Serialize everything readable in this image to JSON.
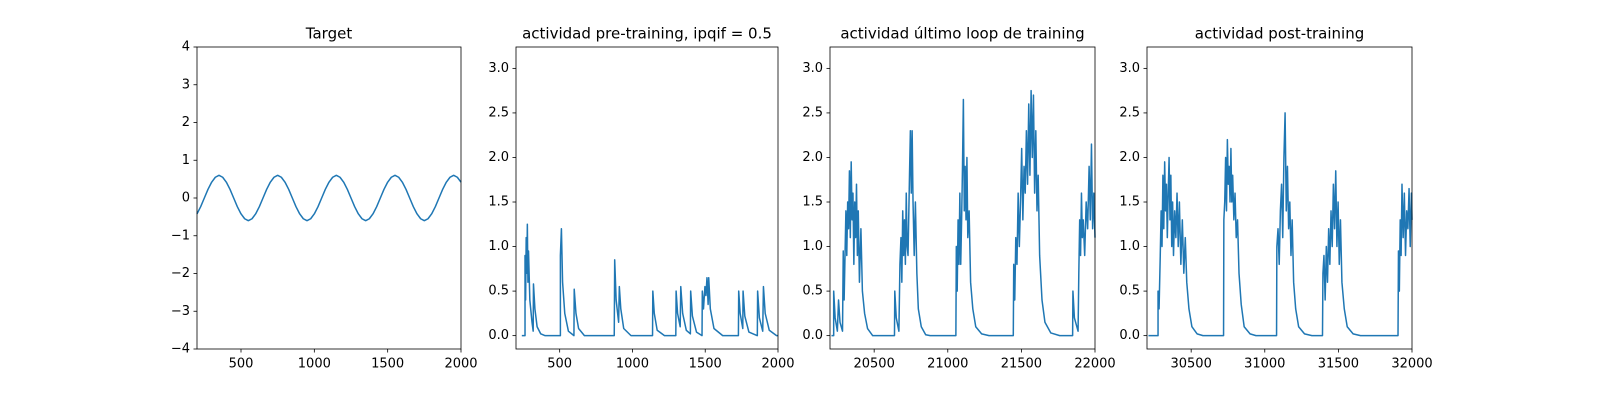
{
  "chart_data": [
    {
      "type": "line",
      "title": "Target",
      "color": "#1f77b4",
      "x": [
        200,
        225,
        250,
        275,
        300,
        325,
        350,
        375,
        400,
        425,
        450,
        475,
        500,
        525,
        550,
        575,
        600,
        625,
        650,
        675,
        700,
        725,
        750,
        775,
        800,
        825,
        850,
        875,
        900,
        925,
        950,
        975,
        1000,
        1025,
        1050,
        1075,
        1100,
        1125,
        1150,
        1175,
        1200,
        1225,
        1250,
        1275,
        1300,
        1325,
        1350,
        1375,
        1400,
        1425,
        1450,
        1475,
        1500,
        1525,
        1550,
        1575,
        1600,
        1625,
        1650,
        1675,
        1700,
        1725,
        1750,
        1775,
        1800,
        1825,
        1850,
        1875,
        1900,
        1925,
        1950,
        1975,
        2000
      ],
      "values": [
        -0.42,
        -0.23,
        0,
        0.23,
        0.42,
        0.55,
        0.6,
        0.55,
        0.42,
        0.23,
        0,
        -0.23,
        -0.42,
        -0.55,
        -0.6,
        -0.55,
        -0.42,
        -0.23,
        0,
        0.23,
        0.42,
        0.55,
        0.6,
        0.55,
        0.42,
        0.23,
        0,
        -0.23,
        -0.42,
        -0.55,
        -0.6,
        -0.55,
        -0.42,
        -0.23,
        0,
        0.23,
        0.42,
        0.55,
        0.6,
        0.55,
        0.42,
        0.23,
        0,
        -0.23,
        -0.42,
        -0.55,
        -0.6,
        -0.55,
        -0.42,
        -0.23,
        0,
        0.23,
        0.42,
        0.55,
        0.6,
        0.55,
        0.42,
        0.23,
        0,
        -0.23,
        -0.42,
        -0.55,
        -0.6,
        -0.55,
        -0.42,
        -0.23,
        0,
        0.23,
        0.42,
        0.55,
        0.6,
        0.55,
        0.42
      ],
      "xlim": [
        200,
        2000
      ],
      "ylim": [
        -4,
        4
      ],
      "xticks": [
        500,
        1000,
        1500,
        2000
      ],
      "yticks": [
        {
          "value": -4,
          "label": "−4"
        },
        {
          "value": -3,
          "label": "−3"
        },
        {
          "value": -2,
          "label": "−2"
        },
        {
          "value": -1,
          "label": "−1"
        },
        0,
        1,
        2,
        3,
        4
      ]
    },
    {
      "type": "line",
      "title": "actividad pre-training, ipqif = 0.5",
      "color": "#1f77b4",
      "x": [
        240,
        262,
        262,
        266,
        270,
        274,
        278,
        282,
        286,
        295,
        310,
        318,
        320,
        330,
        345,
        370,
        400,
        505,
        505,
        512,
        520,
        535,
        560,
        598,
        600,
        612,
        630,
        670,
        875,
        878,
        888,
        905,
        910,
        920,
        940,
        990,
        1138,
        1140,
        1150,
        1170,
        1220,
        1298,
        1300,
        1310,
        1328,
        1332,
        1345,
        1370,
        1398,
        1400,
        1412,
        1440,
        1478,
        1480,
        1488,
        1498,
        1505,
        1512,
        1520,
        1524,
        1535,
        1560,
        1620,
        1728,
        1730,
        1740,
        1758,
        1760,
        1772,
        1800,
        1858,
        1860,
        1872,
        1895,
        1900,
        1912,
        1940,
        1990,
        2000
      ],
      "values": [
        0,
        0,
        0.9,
        0.4,
        1.1,
        0.7,
        1.25,
        0.6,
        0.95,
        0.4,
        0.15,
        0.05,
        0.58,
        0.3,
        0.1,
        0.02,
        0,
        0,
        0.9,
        1.2,
        0.6,
        0.25,
        0.05,
        0,
        0.52,
        0.25,
        0.08,
        0,
        0,
        0.85,
        0.4,
        0.15,
        0.55,
        0.3,
        0.08,
        0,
        0,
        0.5,
        0.25,
        0.06,
        0,
        0,
        0.5,
        0.25,
        0.1,
        0.55,
        0.25,
        0.06,
        0.02,
        0.5,
        0.22,
        0.04,
        0,
        0.5,
        0.3,
        0.55,
        0.45,
        0.65,
        0.35,
        0.65,
        0.3,
        0.08,
        0,
        0,
        0.5,
        0.25,
        0.08,
        0.5,
        0.22,
        0.04,
        0,
        0.5,
        0.2,
        0.05,
        0.55,
        0.25,
        0.06,
        0,
        0
      ],
      "xlim": [
        200,
        2000
      ],
      "ylim": [
        -0.15,
        3.24
      ],
      "xticks": [
        500,
        1000,
        1500,
        2000
      ],
      "yticks": [
        {
          "value": 0,
          "label": "0.0"
        },
        0.5,
        {
          "value": 1,
          "label": "1.0"
        },
        1.5,
        {
          "value": 2,
          "label": "2.0"
        },
        2.5,
        {
          "value": 3,
          "label": "3.0"
        }
      ]
    },
    {
      "type": "line",
      "title": "actividad último loop de training",
      "color": "#1f77b4",
      "x": [
        20210,
        20225,
        20225,
        20235,
        20250,
        20258,
        20268,
        20285,
        20290,
        20296,
        20302,
        20308,
        20314,
        20320,
        20326,
        20332,
        20338,
        20344,
        20350,
        20356,
        20362,
        20368,
        20374,
        20380,
        20386,
        20392,
        20400,
        20410,
        20420,
        20435,
        20455,
        20490,
        20638,
        20640,
        20650,
        20668,
        20675,
        20682,
        20688,
        20694,
        20700,
        20706,
        20712,
        20718,
        20724,
        20730,
        20740,
        20746,
        20752,
        20758,
        20764,
        20772,
        20780,
        20790,
        20800,
        20820,
        20850,
        20880,
        21055,
        21058,
        21064,
        21070,
        21076,
        21082,
        21088,
        21094,
        21100,
        21106,
        21112,
        21118,
        21124,
        21130,
        21136,
        21145,
        21155,
        21170,
        21190,
        21230,
        21280,
        21445,
        21448,
        21455,
        21462,
        21470,
        21478,
        21486,
        21494,
        21502,
        21510,
        21518,
        21526,
        21534,
        21542,
        21550,
        21558,
        21566,
        21574,
        21582,
        21590,
        21598,
        21606,
        21614,
        21624,
        21640,
        21660,
        21700,
        21760,
        21848,
        21850,
        21860,
        21885,
        21890,
        21896,
        21902,
        21908,
        21914,
        21920,
        21930,
        21940,
        21950,
        21960,
        21968,
        21976,
        21984,
        21992,
        22000
      ],
      "values": [
        0,
        0,
        0.5,
        0.2,
        0.05,
        0.4,
        0.15,
        0.05,
        0.95,
        0.4,
        0.9,
        1.4,
        0.9,
        1.5,
        1.2,
        1.85,
        1.1,
        1.95,
        1.3,
        1.6,
        0.8,
        1.5,
        1.1,
        1.7,
        0.9,
        1.4,
        0.6,
        1.2,
        0.5,
        0.25,
        0.08,
        0,
        0,
        0.5,
        0.2,
        0.05,
        0.8,
        1.1,
        0.6,
        1.4,
        0.9,
        1.3,
        0.8,
        1.6,
        1.0,
        0.9,
        1.8,
        2.3,
        1.6,
        2.3,
        1.5,
        0.9,
        1.5,
        0.7,
        0.3,
        0.1,
        0.01,
        0,
        0,
        1.0,
        0.5,
        1.3,
        0.8,
        1.6,
        0.8,
        1.3,
        1.9,
        2.65,
        1.4,
        1.9,
        1.3,
        2.0,
        1.1,
        1.4,
        0.6,
        0.3,
        0.1,
        0.02,
        0,
        0,
        0.8,
        0.4,
        1.1,
        0.8,
        1.6,
        1.0,
        1.5,
        2.1,
        1.3,
        1.9,
        1.6,
        2.3,
        1.7,
        2.6,
        1.8,
        2.75,
        2.0,
        2.7,
        1.6,
        2.3,
        1.4,
        1.8,
        0.9,
        0.4,
        0.15,
        0.03,
        0,
        0,
        0.5,
        0.2,
        0.05,
        0.7,
        1.3,
        0.9,
        1.6,
        1.1,
        1.3,
        0.9,
        1.5,
        1.2,
        1.9,
        1.3,
        2.15,
        1.2,
        1.6,
        1.1
      ],
      "xlim": [
        20200,
        22000
      ],
      "ylim": [
        -0.15,
        3.24
      ],
      "xticks": [
        20500,
        21000,
        21500,
        22000
      ],
      "yticks": [
        {
          "value": 0,
          "label": "0.0"
        },
        0.5,
        {
          "value": 1,
          "label": "1.0"
        },
        1.5,
        {
          "value": 2,
          "label": "2.0"
        },
        2.5,
        {
          "value": 3,
          "label": "3.0"
        }
      ]
    },
    {
      "type": "line",
      "title": "actividad post-training",
      "color": "#1f77b4",
      "x": [
        30210,
        30275,
        30275,
        30282,
        30290,
        30296,
        30302,
        30308,
        30314,
        30320,
        30326,
        30332,
        30338,
        30344,
        30350,
        30356,
        30362,
        30368,
        30374,
        30380,
        30388,
        30396,
        30404,
        30412,
        30420,
        30430,
        30440,
        30450,
        30460,
        30470,
        30485,
        30505,
        30540,
        30580,
        30720,
        30722,
        30728,
        30734,
        30740,
        30746,
        30752,
        30758,
        30764,
        30770,
        30776,
        30782,
        30790,
        30798,
        30806,
        30815,
        30825,
        30840,
        30860,
        30900,
        30940,
        31080,
        31082,
        31090,
        31098,
        31106,
        31114,
        31122,
        31130,
        31138,
        31146,
        31154,
        31162,
        31170,
        31178,
        31186,
        31196,
        31210,
        31230,
        31270,
        31320,
        31392,
        31395,
        31402,
        31410,
        31418,
        31426,
        31434,
        31442,
        31450,
        31458,
        31466,
        31474,
        31482,
        31490,
        31498,
        31506,
        31514,
        31524,
        31540,
        31560,
        31600,
        31650,
        31905,
        31908,
        31914,
        31920,
        31926,
        31932,
        31940,
        31948,
        31956,
        31964,
        31972,
        31980,
        31988,
        31996,
        32000
      ],
      "values": [
        0,
        0,
        0.5,
        0.3,
        0.9,
        1.4,
        1.0,
        1.8,
        1.2,
        1.95,
        1.4,
        1.7,
        1.1,
        1.6,
        2.0,
        1.3,
        1.8,
        1.0,
        1.5,
        0.9,
        1.4,
        1.1,
        1.6,
        1.0,
        1.5,
        0.8,
        1.3,
        0.7,
        1.1,
        0.6,
        0.3,
        0.1,
        0.02,
        0,
        0,
        1.3,
        1.5,
        2.0,
        1.4,
        2.2,
        1.7,
        1.9,
        1.5,
        2.1,
        1.5,
        1.8,
        1.3,
        1.6,
        1.1,
        1.3,
        0.7,
        0.35,
        0.1,
        0.02,
        0,
        0,
        1.0,
        1.2,
        0.8,
        1.4,
        1.7,
        1.1,
        2.0,
        2.5,
        1.4,
        1.9,
        1.2,
        1.5,
        0.9,
        1.3,
        0.6,
        0.3,
        0.1,
        0.02,
        0,
        0,
        0.7,
        0.9,
        0.4,
        1.0,
        0.6,
        1.2,
        0.8,
        1.4,
        1.0,
        1.7,
        1.2,
        1.85,
        1.0,
        1.5,
        0.8,
        1.3,
        0.6,
        0.3,
        0.1,
        0.02,
        0,
        0,
        0.95,
        0.5,
        1.3,
        0.9,
        1.7,
        1.1,
        1.6,
        0.9,
        1.4,
        1.2,
        1.65,
        1.0,
        1.6,
        1.3
      ],
      "xlim": [
        30200,
        32000
      ],
      "ylim": [
        -0.15,
        3.24
      ],
      "xticks": [
        30500,
        31000,
        31500,
        32000
      ],
      "yticks": [
        {
          "value": 0,
          "label": "0.0"
        },
        0.5,
        {
          "value": 1,
          "label": "1.0"
        },
        1.5,
        {
          "value": 2,
          "label": "2.0"
        },
        2.5,
        {
          "value": 3,
          "label": "3.0"
        }
      ]
    }
  ]
}
